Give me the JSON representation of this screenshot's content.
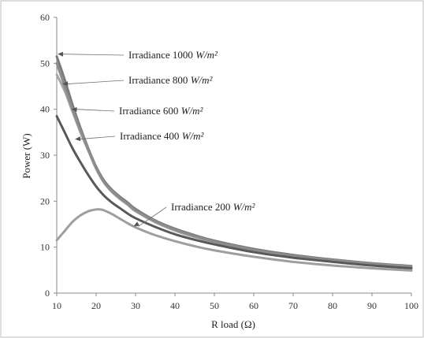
{
  "chart_data": {
    "type": "line",
    "title": "",
    "xlabel": "R load (Ω)",
    "ylabel": "Power (W)",
    "xlim": [
      10,
      100
    ],
    "ylim": [
      0,
      60
    ],
    "xticks": [
      10,
      20,
      30,
      40,
      50,
      60,
      70,
      80,
      90,
      100
    ],
    "yticks": [
      0,
      10,
      20,
      30,
      40,
      50,
      60
    ],
    "grid": false,
    "legend": "none",
    "series": [
      {
        "name": "Irradiance 1000 W/m²",
        "color": "#7a7a7a",
        "x": [
          10,
          12,
          14,
          16,
          18,
          20,
          22,
          24,
          26,
          28,
          30,
          35,
          40,
          45,
          50,
          60,
          70,
          80,
          90,
          100
        ],
        "y": [
          51.5,
          46.5,
          41,
          36,
          31.5,
          27.5,
          24.5,
          22.5,
          21,
          19.7,
          18.3,
          15.8,
          14,
          12.6,
          11.4,
          9.6,
          8.3,
          7.3,
          6.5,
          5.9
        ]
      },
      {
        "name": "Irradiance 800 W/m²",
        "color": "#a5a5a5",
        "x": [
          10,
          12,
          14,
          16,
          18,
          20,
          22,
          24,
          26,
          28,
          30,
          35,
          40,
          45,
          50,
          60,
          70,
          80,
          90,
          100
        ],
        "y": [
          47.5,
          44,
          39.5,
          35,
          31,
          27,
          24,
          22,
          20.5,
          19.2,
          17.8,
          15.4,
          13.6,
          12.2,
          11.1,
          9.3,
          8,
          7.1,
          6.3,
          5.7
        ]
      },
      {
        "name": "Irradiance 600 W/m²",
        "color": "#8c8c8c",
        "x": [
          10,
          12,
          14,
          16,
          18,
          20,
          22,
          24,
          26,
          28,
          30,
          35,
          40,
          45,
          50,
          60,
          70,
          80,
          90,
          100
        ],
        "y": [
          50,
          45,
          40,
          35.5,
          31.2,
          27.3,
          24.2,
          22.2,
          20.7,
          19.4,
          18,
          15.6,
          13.8,
          12.4,
          11.2,
          9.4,
          8.1,
          7.2,
          6.4,
          5.8
        ]
      },
      {
        "name": "Irradiance 400 W/m²",
        "color": "#595959",
        "x": [
          10,
          12,
          14,
          16,
          18,
          20,
          22,
          24,
          26,
          28,
          30,
          35,
          40,
          45,
          50,
          60,
          70,
          80,
          90,
          100
        ],
        "y": [
          38.5,
          35,
          31.5,
          28.5,
          25.7,
          23.2,
          21.2,
          19.7,
          18.5,
          17.3,
          16.3,
          14.4,
          12.8,
          11.6,
          10.6,
          8.9,
          7.7,
          6.8,
          6,
          5.4
        ]
      },
      {
        "name": "Irradiance 200 W/m²",
        "color": "#9e9e9e",
        "x": [
          10,
          12,
          14,
          16,
          18,
          20,
          21,
          22,
          24,
          26,
          28,
          30,
          35,
          40,
          45,
          50,
          60,
          70,
          80,
          90,
          100
        ],
        "y": [
          11.5,
          13.5,
          15.5,
          16.9,
          17.8,
          18.2,
          18.2,
          18,
          17.2,
          16.2,
          15.2,
          14.3,
          12.6,
          11.3,
          10.2,
          9.3,
          7.9,
          6.8,
          6,
          5.4,
          4.9
        ]
      }
    ],
    "annotations": [
      {
        "label": "Irradiance 1000",
        "unit": "W/m²",
        "points_to": {
          "x": 10.2,
          "y": 52
        }
      },
      {
        "label": "Irradiance 800",
        "unit": "W/m²",
        "points_to": {
          "x": 11.4,
          "y": 45.5
        }
      },
      {
        "label": "Irradiance 600",
        "unit": "W/m²",
        "points_to": {
          "x": 13.7,
          "y": 40
        }
      },
      {
        "label": "Irradiance 400",
        "unit": "W/m²",
        "points_to": {
          "x": 14.6,
          "y": 33.5
        }
      },
      {
        "label": "Irradiance 200",
        "unit": "W/m²",
        "points_to": {
          "x": 29.5,
          "y": 14.5
        }
      }
    ]
  }
}
